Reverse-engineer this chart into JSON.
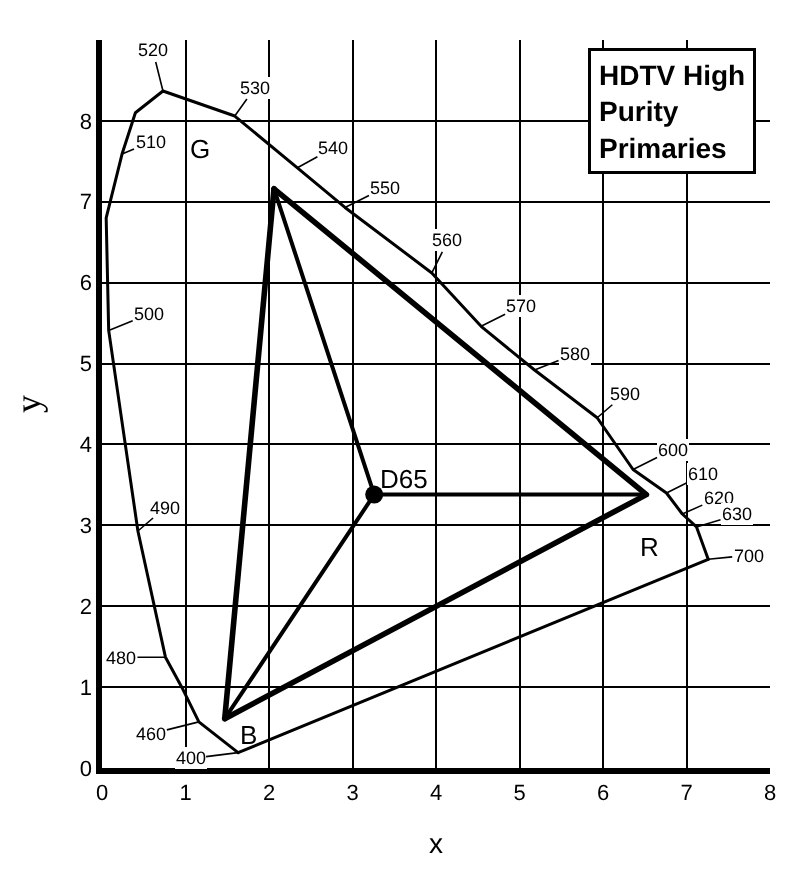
{
  "chart_data": {
    "type": "line",
    "title": "HDTV High Purity Primaries",
    "xlabel": "x",
    "ylabel": "y",
    "xlim": [
      0,
      8
    ],
    "ylim": [
      0,
      9
    ],
    "xticks": [
      0,
      1,
      2,
      3,
      4,
      5,
      6,
      7,
      8
    ],
    "yticks": [
      0,
      1,
      2,
      3,
      4,
      5,
      6,
      7,
      8
    ],
    "grid": true,
    "series": [
      {
        "color": "#000000",
        "x": [
          1.63,
          1.16,
          0.97,
          0.76,
          0.43,
          0.08,
          0.05,
          0.24,
          0.4,
          0.73,
          1.59,
          2.34,
          2.91,
          3.95,
          4.54,
          5.18,
          5.93,
          6.36,
          6.76,
          6.95,
          7.12,
          7.26
        ],
        "values": [
          0.19,
          0.57,
          0.97,
          1.37,
          2.93,
          5.41,
          6.8,
          7.59,
          8.1,
          8.37,
          8.06,
          7.42,
          6.93,
          6.12,
          5.46,
          4.92,
          4.33,
          3.69,
          3.4,
          3.14,
          2.98,
          2.58
        ]
      },
      {
        "color": "#000000",
        "x": [
          7.26,
          1.63
        ],
        "values": [
          2.58,
          0.19
        ]
      },
      {
        "color": "#000000",
        "x": [
          2.06,
          6.52,
          1.47
        ],
        "values": [
          7.16,
          3.38,
          0.61
        ]
      },
      {
        "color": "#000000",
        "x": [
          1.47,
          2.06
        ],
        "values": [
          0.61,
          7.16
        ]
      },
      {
        "color": "#000000",
        "x": [
          3.26,
          2.06
        ],
        "values": [
          3.38,
          7.16
        ]
      },
      {
        "color": "#000000",
        "x": [
          3.26,
          6.52
        ],
        "values": [
          3.38,
          3.38
        ]
      },
      {
        "color": "#000000",
        "x": [
          3.26,
          1.47
        ],
        "values": [
          3.38,
          0.61
        ]
      },
      {
        "type": "scatter",
        "color": "#000000",
        "marker": "circle",
        "x": [
          3.26
        ],
        "values": [
          3.38
        ]
      }
    ],
    "annotations": [
      {
        "text": "520",
        "x": 0.73,
        "y": 8.37
      },
      {
        "text": "530",
        "x": 1.59,
        "y": 8.06
      },
      {
        "text": "510",
        "x": 0.24,
        "y": 7.59
      },
      {
        "text": "540",
        "x": 2.34,
        "y": 7.42
      },
      {
        "text": "550",
        "x": 2.91,
        "y": 6.93
      },
      {
        "text": "500",
        "x": 0.08,
        "y": 5.41
      },
      {
        "text": "560",
        "x": 3.95,
        "y": 6.12
      },
      {
        "text": "570",
        "x": 4.54,
        "y": 5.46
      },
      {
        "text": "580",
        "x": 5.18,
        "y": 4.92
      },
      {
        "text": "590",
        "x": 5.93,
        "y": 4.33
      },
      {
        "text": "600",
        "x": 6.36,
        "y": 3.69
      },
      {
        "text": "610",
        "x": 6.76,
        "y": 3.4
      },
      {
        "text": "620",
        "x": 6.95,
        "y": 3.14
      },
      {
        "text": "630",
        "x": 7.12,
        "y": 2.98
      },
      {
        "text": "700",
        "x": 7.26,
        "y": 2.58
      },
      {
        "text": "490",
        "x": 0.43,
        "y": 2.93
      },
      {
        "text": "480",
        "x": 0.76,
        "y": 1.37
      },
      {
        "text": "460",
        "x": 1.16,
        "y": 0.57
      },
      {
        "text": "400",
        "x": 1.63,
        "y": 0.19
      },
      {
        "text": "G",
        "x": 2.06,
        "y": 7.16
      },
      {
        "text": "D65",
        "x": 3.26,
        "y": 3.38
      },
      {
        "text": "B",
        "x": 1.47,
        "y": 0.61
      },
      {
        "text": "R",
        "x": 6.52,
        "y": 3.38
      }
    ]
  }
}
